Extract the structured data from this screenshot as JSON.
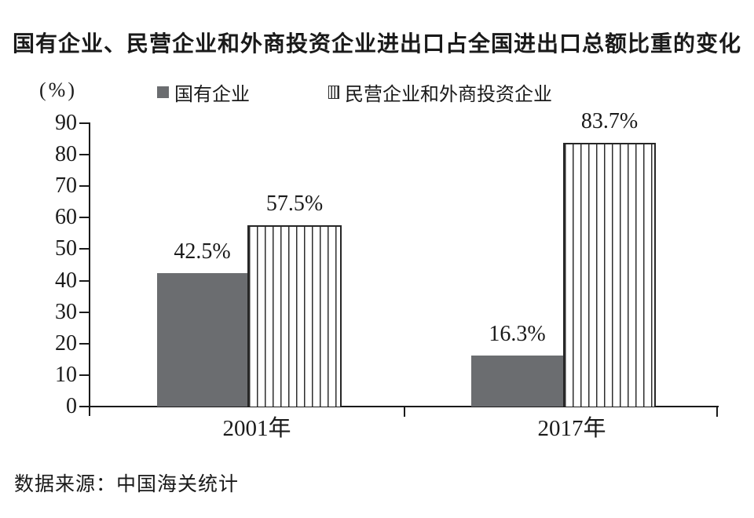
{
  "source": "数据来源：中国海关统计",
  "chart_data": {
    "type": "bar",
    "title": "国有企业、民营企业和外商投资企业进出口占全国进出口总额比重的变化",
    "unit_label": "(%)",
    "categories": [
      "2001年",
      "2017年"
    ],
    "series": [
      {
        "name": "国有企业",
        "style": "solid-gray",
        "values": [
          42.5,
          16.3
        ]
      },
      {
        "name": "民营企业和外商投资企业",
        "style": "vertical-stripes",
        "values": [
          57.5,
          83.7
        ]
      }
    ],
    "value_labels": [
      [
        "42.5%",
        "16.3%"
      ],
      [
        "57.5%",
        "83.7%"
      ]
    ],
    "ylim": [
      0,
      90
    ],
    "y_ticks": [
      0,
      10,
      20,
      30,
      40,
      50,
      60,
      70,
      80,
      90
    ],
    "grid": false,
    "legend_position": "top",
    "colors": {
      "solid_bar": "#6b6d70",
      "stripe_line": "#2e2e2e",
      "axis": "#1a1a1a",
      "text": "#1a1a1a"
    }
  }
}
